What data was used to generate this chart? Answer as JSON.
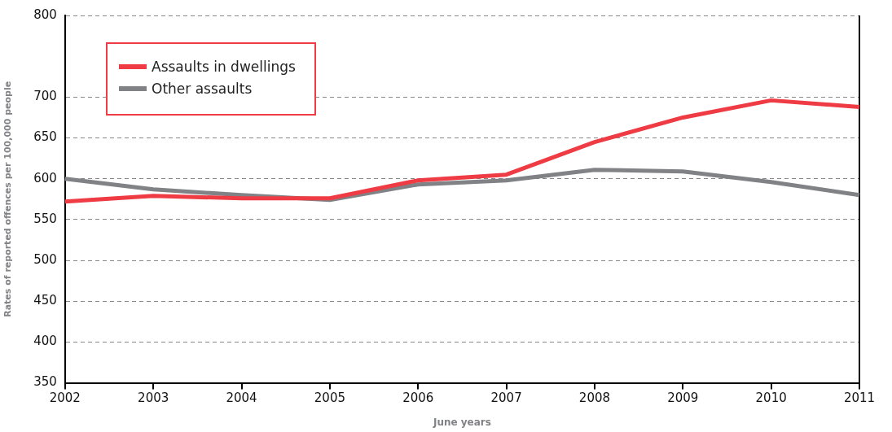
{
  "chart_data": {
    "type": "line",
    "xlabel": "June years",
    "ylabel": "Rates of reported offences per 100,000 people",
    "categories": [
      "2002",
      "2003",
      "2004",
      "2005",
      "2006",
      "2007",
      "2008",
      "2009",
      "2010",
      "2011"
    ],
    "series": [
      {
        "name": "Assaults in dwellings",
        "color": "#ee3b44",
        "values": [
          572,
          579,
          576,
          576,
          598,
          605,
          645,
          675,
          696,
          688
        ]
      },
      {
        "name": "Other assaults",
        "color": "#808285",
        "values": [
          600,
          587,
          580,
          574,
          593,
          598,
          611,
          609,
          596,
          580
        ]
      }
    ],
    "ylim": [
      350,
      800
    ],
    "yticks": [
      350,
      400,
      450,
      500,
      550,
      600,
      650,
      700,
      800
    ],
    "grid": "y",
    "legend": "top left",
    "marker": "none",
    "line_style": "solid"
  }
}
